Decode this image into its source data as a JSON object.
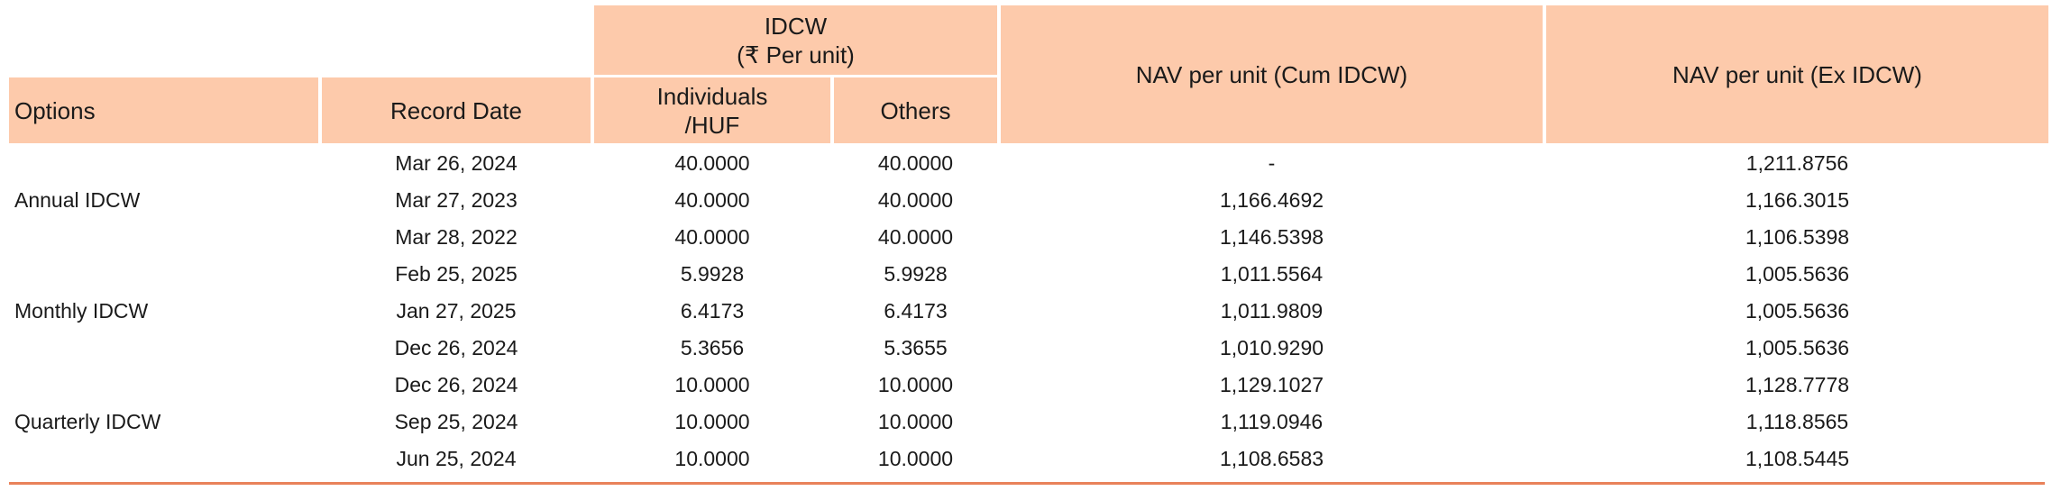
{
  "headers": {
    "options": "Options",
    "record_date": "Record Date",
    "idcw_group_line1": "IDCW",
    "idcw_group_line2": "(₹ Per unit)",
    "individuals_line1": "Individuals",
    "individuals_line2": "/HUF",
    "others": "Others",
    "nav_cum": "NAV per unit (Cum IDCW)",
    "nav_ex": "NAV per unit (Ex IDCW)"
  },
  "groups": [
    {
      "option": "Annual IDCW",
      "rows": [
        {
          "date": "Mar 26, 2024",
          "individuals": "40.0000",
          "others": "40.0000",
          "nav_cum": "-",
          "nav_ex": "1,211.8756"
        },
        {
          "date": "Mar 27, 2023",
          "individuals": "40.0000",
          "others": "40.0000",
          "nav_cum": "1,166.4692",
          "nav_ex": "1,166.3015"
        },
        {
          "date": "Mar 28, 2022",
          "individuals": "40.0000",
          "others": "40.0000",
          "nav_cum": "1,146.5398",
          "nav_ex": "1,106.5398"
        }
      ]
    },
    {
      "option": "Monthly IDCW",
      "rows": [
        {
          "date": "Feb 25, 2025",
          "individuals": "5.9928",
          "others": "5.9928",
          "nav_cum": "1,011.5564",
          "nav_ex": "1,005.5636"
        },
        {
          "date": "Jan 27, 2025",
          "individuals": "6.4173",
          "others": "6.4173",
          "nav_cum": "1,011.9809",
          "nav_ex": "1,005.5636"
        },
        {
          "date": "Dec 26, 2024",
          "individuals": "5.3656",
          "others": "5.3655",
          "nav_cum": "1,010.9290",
          "nav_ex": "1,005.5636"
        }
      ]
    },
    {
      "option": "Quarterly IDCW",
      "rows": [
        {
          "date": "Dec 26, 2024",
          "individuals": "10.0000",
          "others": "10.0000",
          "nav_cum": "1,129.1027",
          "nav_ex": "1,128.7778"
        },
        {
          "date": "Sep 25, 2024",
          "individuals": "10.0000",
          "others": "10.0000",
          "nav_cum": "1,119.0946",
          "nav_ex": "1,118.8565"
        },
        {
          "date": "Jun 25, 2024",
          "individuals": "10.0000",
          "others": "10.0000",
          "nav_cum": "1,108.6583",
          "nav_ex": "1,108.5445"
        }
      ]
    }
  ]
}
